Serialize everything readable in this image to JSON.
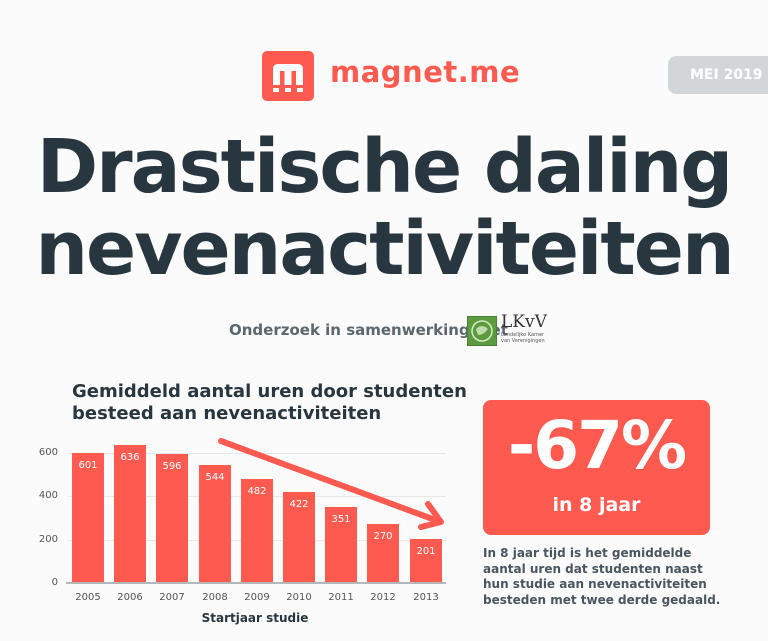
{
  "header": {
    "brand": "magnet.me",
    "date_badge": "MEI 2019"
  },
  "headline": {
    "line1": "Drastische daling",
    "line2": "nevenactiviteiten"
  },
  "collaboration": {
    "text": "Onderzoek in samenwerking met",
    "partner_name": "LKvV",
    "partner_sub1": "Landelijke Kamer",
    "partner_sub2": "van Verenigingen"
  },
  "stat": {
    "value": "-67%",
    "subtitle": "in 8 jaar",
    "description": "In 8 jaar tijd is het gemiddelde aantal uren dat studenten naast hun studie aan nevenactiviteiten besteden met twee derde gedaald."
  },
  "colors": {
    "accent": "#ff5a4f",
    "text_dark": "#283640",
    "badge_bg": "#d3d6d8",
    "partner_green": "#5d9b3f"
  },
  "chart_data": {
    "type": "bar",
    "title": "Gemiddeld aantal uren door studenten besteed aan nevenactiviteiten",
    "categories": [
      "2005",
      "2006",
      "2007",
      "2008",
      "2009",
      "2010",
      "2011",
      "2012",
      "2013"
    ],
    "values": [
      601,
      636,
      596,
      544,
      482,
      422,
      351,
      270,
      201
    ],
    "xlabel": "Startjaar studie",
    "ylabel": "",
    "yticks": [
      "0",
      "200",
      "400",
      "600"
    ],
    "ylim": [
      0,
      650
    ],
    "grid": true,
    "legend": false,
    "annotation": "downward trend arrow from 2009 to 2013",
    "bar_color": "#ff5a4f"
  }
}
